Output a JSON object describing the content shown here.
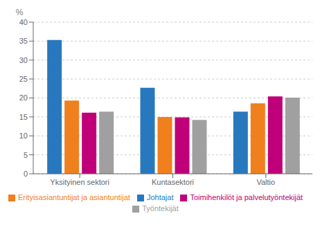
{
  "chart_data": {
    "type": "bar",
    "categories": [
      "Yksityinen sektori",
      "Kuntasektori",
      "Valtio"
    ],
    "series": [
      {
        "name": "Johtajat",
        "color": "#2878BE",
        "values": [
          35.3,
          22.7,
          16.4
        ]
      },
      {
        "name": "Erityisasiantuntijat ja asiantuntijat",
        "color": "#F07F1E",
        "values": [
          19.3,
          15.0,
          18.6
        ]
      },
      {
        "name": "Toimihenkilöt ja palvelutyöntekijät",
        "color": "#C00078",
        "values": [
          16.1,
          14.9,
          20.4
        ]
      },
      {
        "name": "Työntekijät",
        "color": "#A0A0A0",
        "values": [
          16.4,
          14.2,
          20.1
        ]
      }
    ],
    "ylabel": "%",
    "ylim": [
      0,
      40
    ],
    "yticks": [
      0,
      5,
      10,
      15,
      20,
      25,
      30,
      35,
      40
    ],
    "grid": true,
    "legend": "bottom"
  }
}
